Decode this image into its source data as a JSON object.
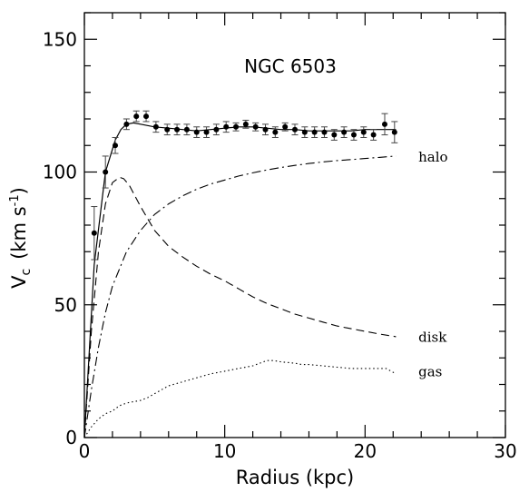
{
  "chart_data": {
    "type": "line",
    "title": "NGC 6503",
    "xlabel": "Radius (kpc)",
    "ylabel": "V_c (km s^-1)",
    "ylabel_main": "V",
    "ylabel_sub": "c",
    "ylabel_rest": "(km s",
    "ylabel_sup": "-1",
    "ylabel_close": ")",
    "xlim": [
      0,
      30
    ],
    "ylim": [
      0,
      160
    ],
    "xticks": [
      0,
      10,
      20,
      30
    ],
    "xtick_labels": [
      "0",
      "10",
      "20",
      "30"
    ],
    "yticks": [
      0,
      50,
      100,
      150
    ],
    "ytick_labels": [
      "0",
      "50",
      "100",
      "150"
    ],
    "grid": false,
    "observations": {
      "points": [
        {
          "x": 0.7,
          "y": 77,
          "err": 10
        },
        {
          "x": 1.5,
          "y": 100,
          "err": 6
        },
        {
          "x": 2.2,
          "y": 110,
          "err": 3
        },
        {
          "x": 3.0,
          "y": 118,
          "err": 2
        },
        {
          "x": 3.7,
          "y": 121,
          "err": 2
        },
        {
          "x": 4.4,
          "y": 121,
          "err": 2
        },
        {
          "x": 5.1,
          "y": 117,
          "err": 2
        },
        {
          "x": 5.9,
          "y": 116,
          "err": 2
        },
        {
          "x": 6.6,
          "y": 116,
          "err": 2
        },
        {
          "x": 7.3,
          "y": 116,
          "err": 2
        },
        {
          "x": 8.0,
          "y": 115,
          "err": 2
        },
        {
          "x": 8.7,
          "y": 115,
          "err": 2
        },
        {
          "x": 9.4,
          "y": 116,
          "err": 2
        },
        {
          "x": 10.1,
          "y": 117,
          "err": 2
        },
        {
          "x": 10.8,
          "y": 117,
          "err": 1.5
        },
        {
          "x": 11.5,
          "y": 118,
          "err": 1.5
        },
        {
          "x": 12.2,
          "y": 117,
          "err": 1.5
        },
        {
          "x": 12.9,
          "y": 116,
          "err": 2
        },
        {
          "x": 13.6,
          "y": 115,
          "err": 2
        },
        {
          "x": 14.3,
          "y": 117,
          "err": 1.5
        },
        {
          "x": 15.0,
          "y": 116,
          "err": 2
        },
        {
          "x": 15.7,
          "y": 115,
          "err": 2
        },
        {
          "x": 16.4,
          "y": 115,
          "err": 2
        },
        {
          "x": 17.1,
          "y": 115,
          "err": 2
        },
        {
          "x": 17.8,
          "y": 114,
          "err": 2
        },
        {
          "x": 18.5,
          "y": 115,
          "err": 2
        },
        {
          "x": 19.2,
          "y": 114,
          "err": 2
        },
        {
          "x": 19.9,
          "y": 115,
          "err": 2
        },
        {
          "x": 20.6,
          "y": 114,
          "err": 2
        },
        {
          "x": 21.4,
          "y": 118,
          "err": 4
        },
        {
          "x": 22.1,
          "y": 115,
          "err": 4
        }
      ]
    },
    "series": [
      {
        "name": "total",
        "style": "solid",
        "x": [
          0,
          0.7,
          1.5,
          2.2,
          2.6,
          3.0,
          3.5,
          4.0,
          5.0,
          6.0,
          7.0,
          8.0,
          9.0,
          10.0,
          11.0,
          12.0,
          13.0,
          14.0,
          15.0,
          16.0,
          17.0,
          18.0,
          19.0,
          20.0,
          21.0,
          22.2
        ],
        "y": [
          0,
          65,
          100,
          112,
          116,
          118,
          118.5,
          118,
          117,
          116.5,
          116,
          115.5,
          116,
          116.5,
          117,
          117,
          116.5,
          116,
          116,
          115.5,
          115.5,
          115.5,
          115.5,
          116,
          116,
          116
        ]
      },
      {
        "name": "halo",
        "style": "dashdot",
        "x": [
          0,
          0.5,
          1.0,
          1.5,
          2.0,
          3.0,
          4.0,
          5.0,
          6.0,
          7.0,
          8.0,
          9.0,
          10.0,
          11.0,
          12.0,
          13.0,
          14.0,
          15.0,
          16.0,
          17.0,
          18.0,
          19.0,
          20.0,
          21.0,
          22.2
        ],
        "y": [
          0,
          18,
          34,
          47,
          57,
          70,
          78,
          84,
          88,
          91,
          93.5,
          95.5,
          97,
          98.5,
          99.7,
          100.8,
          101.7,
          102.5,
          103.2,
          103.8,
          104.3,
          104.7,
          105.1,
          105.5,
          106
        ]
      },
      {
        "name": "disk",
        "style": "dashed",
        "x": [
          0,
          0.5,
          1.0,
          1.5,
          2.0,
          2.5,
          2.8,
          3.2,
          4.0,
          5.0,
          6.0,
          7.0,
          8.0,
          9.0,
          10.0,
          11.0,
          12.0,
          13.0,
          14.0,
          15.0,
          16.0,
          17.0,
          18.0,
          19.0,
          20.0,
          21.0,
          22.2
        ],
        "y": [
          0,
          40,
          70,
          88,
          96,
          98,
          97.5,
          95,
          87,
          78,
          72,
          68,
          64.5,
          61.5,
          59,
          56,
          53,
          50.5,
          48.5,
          46.5,
          45,
          43.5,
          42,
          41,
          40,
          39,
          38
        ]
      },
      {
        "name": "gas",
        "style": "dotted",
        "x": [
          0,
          0.5,
          1.0,
          1.5,
          2.0,
          2.5,
          3.0,
          3.5,
          4.0,
          4.5,
          5.0,
          6.0,
          7.0,
          8.0,
          9.0,
          10.0,
          11.0,
          12.0,
          12.5,
          13.0,
          13.5,
          14.0,
          15.0,
          15.5,
          16.0,
          17.0,
          18.0,
          19.0,
          20.0,
          21.0,
          21.5,
          22.2
        ],
        "y": [
          0,
          4,
          7,
          9,
          10,
          12,
          13,
          13.5,
          14,
          15,
          16.5,
          19.5,
          21,
          22.5,
          24,
          25,
          26,
          27,
          28,
          29,
          29,
          28.5,
          28,
          27.5,
          27.5,
          27,
          26.5,
          26,
          26,
          26,
          26,
          24
        ]
      }
    ],
    "annotations": [
      {
        "text": "halo",
        "x": 23.8,
        "y": 104
      },
      {
        "text": "disk",
        "x": 23.8,
        "y": 36
      },
      {
        "text": "gas",
        "x": 23.8,
        "y": 23
      }
    ]
  }
}
